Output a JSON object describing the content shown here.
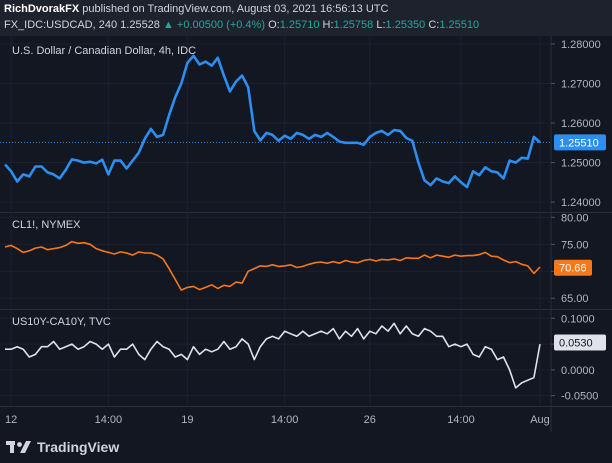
{
  "header": {
    "author": "RichDvorakFX",
    "published_text": "published on TradingView.com, August 03, 2021 16:56:13 UTC",
    "symbol": "FX_IDC:USDCAD, 240",
    "last": "1.25528",
    "change": "▲ +0.00500 (+0.4%)",
    "open_label": "O:",
    "open": "1.25710",
    "high_label": "H:",
    "high": "1.25758",
    "low_label": "L:",
    "low": "1.25350",
    "close_label": "C:",
    "close": "1.25510"
  },
  "footer": {
    "brand": "TradingView"
  },
  "colors": {
    "usdcad": "#2b8ef0",
    "crude": "#f6781d",
    "spread": "#dfe2e8",
    "background": "#131722"
  },
  "chart_data": [
    {
      "type": "line",
      "title": "U.S. Dollar / Canadian Dollar, 4h, IDC",
      "ylim": [
        1.2375,
        1.282
      ],
      "yticks": [
        "1.28000",
        "1.27000",
        "1.26000",
        "1.25000",
        "1.24000"
      ],
      "last_value_label": "1.25510",
      "series": [
        {
          "values": [
            1.2495,
            1.2478,
            1.2452,
            1.247,
            1.2465,
            1.249,
            1.249,
            1.2475,
            1.247,
            1.246,
            1.2482,
            1.2508,
            1.2505,
            1.25,
            1.2502,
            1.2498,
            1.2507,
            1.247,
            1.2505,
            1.2505,
            1.2485,
            1.2505,
            1.2525,
            1.256,
            1.2585,
            1.2565,
            1.257,
            1.262,
            1.2665,
            1.27,
            1.2752,
            1.277,
            1.2748,
            1.2755,
            1.2745,
            1.2765,
            1.272,
            1.268,
            1.2705,
            1.272,
            1.269,
            1.258,
            1.2556,
            1.2575,
            1.257,
            1.2555,
            1.2568,
            1.256,
            1.2575,
            1.257,
            1.256,
            1.257,
            1.2565,
            1.2575,
            1.2565,
            1.2553,
            1.255,
            1.255,
            1.255,
            1.2545,
            1.2565,
            1.2575,
            1.258,
            1.257,
            1.2582,
            1.258,
            1.2562,
            1.2555,
            1.25,
            1.2455,
            1.2443,
            1.246,
            1.2452,
            1.2448,
            1.2465,
            1.245,
            1.2438,
            1.2478,
            1.2468,
            1.2488,
            1.2478,
            1.2475,
            1.246,
            1.2505,
            1.25,
            1.2512,
            1.251,
            1.2565,
            1.2551
          ]
        }
      ]
    },
    {
      "type": "line",
      "title": "CL1!, NYMEX",
      "ylim": [
        63.0,
        81.0
      ],
      "yticks": [
        "80.00",
        "75.00",
        "70.00",
        "65.00"
      ],
      "last_value_label": "70.66",
      "series": [
        {
          "values": [
            74.5,
            74.8,
            74.2,
            73.5,
            73.8,
            74.3,
            74.5,
            74.0,
            74.2,
            74.4,
            74.8,
            75.5,
            75.2,
            75.3,
            75.0,
            74.2,
            73.8,
            73.5,
            73.2,
            73.6,
            73.4,
            73.0,
            73.6,
            73.4,
            73.4,
            73.0,
            72.3,
            70.5,
            68.5,
            66.5,
            67.0,
            67.2,
            66.6,
            67.0,
            67.5,
            66.8,
            67.4,
            67.2,
            68.0,
            67.8,
            70.0,
            70.5,
            71.0,
            70.9,
            71.2,
            70.9,
            71.0,
            71.2,
            70.7,
            70.9,
            71.3,
            71.6,
            71.7,
            71.5,
            71.8,
            71.5,
            72.0,
            71.7,
            71.6,
            72.0,
            72.2,
            71.9,
            72.2,
            72.1,
            72.3,
            72.0,
            72.5,
            72.4,
            72.4,
            73.0,
            72.5,
            73.0,
            72.8,
            72.6,
            73.0,
            72.8,
            72.9,
            72.9,
            73.1,
            73.5,
            72.8,
            72.7,
            72.1,
            71.6,
            71.8,
            71.3,
            71.0,
            69.6,
            70.8
          ]
        }
      ]
    },
    {
      "type": "line",
      "title": "US10Y-CA10Y, TVC",
      "ylim": [
        -0.07,
        0.118
      ],
      "yticks": [
        "0.1000",
        "0.0500",
        "0.0000",
        "-0.0500"
      ],
      "last_value_label": "0.0530",
      "series": [
        {
          "values": [
            0.04,
            0.04,
            0.045,
            0.04,
            0.025,
            0.03,
            0.045,
            0.045,
            0.055,
            0.04,
            0.045,
            0.05,
            0.04,
            0.045,
            0.055,
            0.05,
            0.04,
            0.05,
            0.025,
            0.04,
            0.04,
            0.05,
            0.03,
            0.02,
            0.04,
            0.055,
            0.045,
            0.04,
            0.025,
            0.03,
            0.02,
            0.045,
            0.03,
            0.04,
            0.035,
            0.04,
            0.055,
            0.04,
            0.045,
            0.06,
            0.05,
            0.02,
            0.045,
            0.06,
            0.065,
            0.06,
            0.075,
            0.07,
            0.065,
            0.075,
            0.065,
            0.07,
            0.075,
            0.07,
            0.08,
            0.06,
            0.075,
            0.065,
            0.08,
            0.06,
            0.075,
            0.07,
            0.085,
            0.075,
            0.09,
            0.07,
            0.085,
            0.07,
            0.065,
            0.08,
            0.075,
            0.065,
            0.065,
            0.045,
            0.05,
            0.045,
            0.05,
            0.03,
            0.025,
            0.045,
            0.04,
            0.02,
            0.025,
            0.0,
            -0.035,
            -0.025,
            -0.02,
            -0.015,
            0.05
          ]
        }
      ]
    }
  ],
  "x_axis": {
    "ticks": [
      {
        "label": "12",
        "pos": 1
      },
      {
        "label": "14:00",
        "pos": 17
      },
      {
        "label": "19",
        "pos": 30
      },
      {
        "label": "14:00",
        "pos": 46
      },
      {
        "label": "26",
        "pos": 60
      },
      {
        "label": "14:00",
        "pos": 75
      },
      {
        "label": "Aug",
        "pos": 88
      }
    ]
  }
}
